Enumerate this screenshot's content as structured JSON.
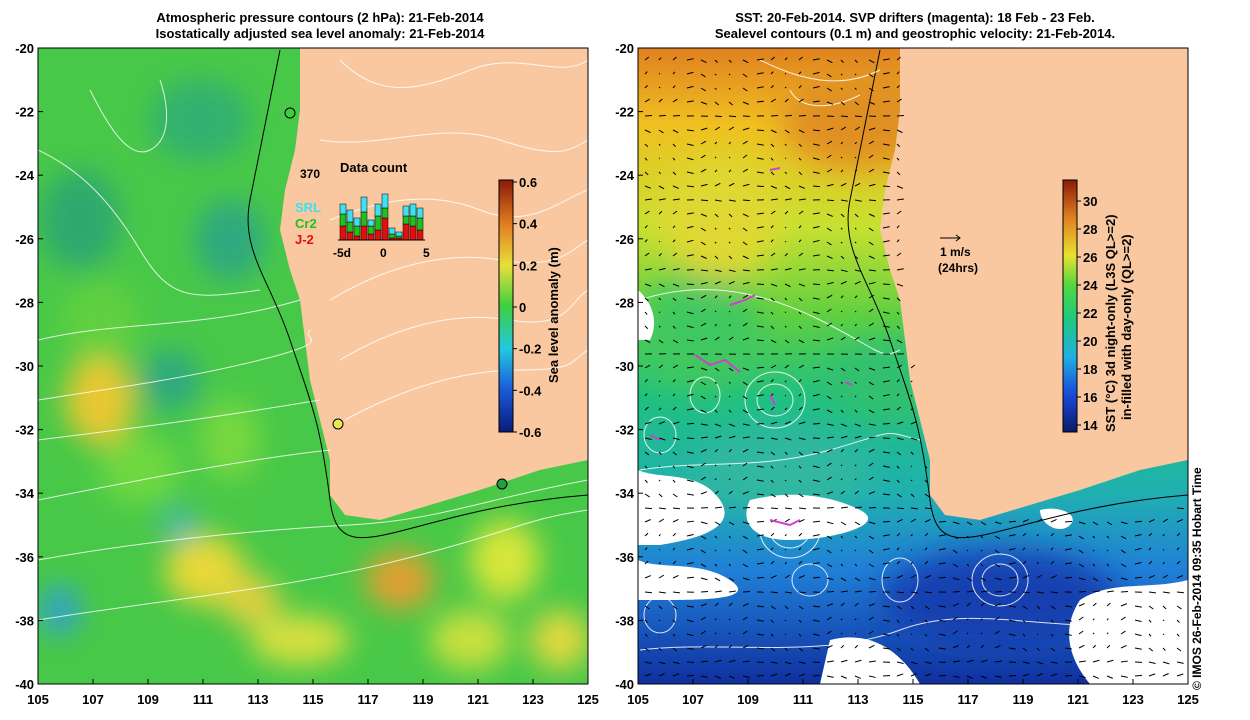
{
  "left_panel": {
    "title_line1": "Atmospheric pressure contours (2 hPa): 21-Feb-2014",
    "title_line2": "Isostatically adjusted sea level anomaly: 21-Feb-2014",
    "y_ticks": [
      "-20",
      "-22",
      "-24",
      "-26",
      "-28",
      "-30",
      "-32",
      "-34",
      "-36",
      "-38",
      "-40"
    ],
    "x_ticks": [
      "105",
      "107",
      "109",
      "111",
      "113",
      "115",
      "117",
      "119",
      "121",
      "123",
      "125"
    ],
    "colorbar": {
      "label": "Sea level anomaly (m)",
      "ticks": [
        "0.6",
        "0.4",
        "0.2",
        "0",
        "-0.2",
        "-0.4",
        "-0.6"
      ]
    },
    "inset": {
      "title": "Data count",
      "max_label": "370",
      "x_ticks": [
        "-5d",
        "0",
        "5"
      ],
      "legend": [
        {
          "name": "SRL",
          "color": "#40e0f0"
        },
        {
          "name": "Cr2",
          "color": "#20c020"
        },
        {
          "name": "J-2",
          "color": "#e01010"
        }
      ]
    }
  },
  "right_panel": {
    "title_line1": "SST: 20-Feb-2014. SVP drifters (magenta): 18 Feb - 23 Feb.",
    "title_line2": "Sealevel contours (0.1 m) and geostrophic velocity: 21-Feb-2014.",
    "y_ticks": [
      "-20",
      "-22",
      "-24",
      "-26",
      "-28",
      "-30",
      "-32",
      "-34",
      "-36",
      "-38",
      "-40"
    ],
    "x_ticks": [
      "105",
      "107",
      "109",
      "111",
      "113",
      "115",
      "117",
      "119",
      "121",
      "123",
      "125"
    ],
    "scale_arrow_label1": "1 m/s",
    "scale_arrow_label2": "(24hrs)",
    "colorbar": {
      "label_line1": "SST (°C) 3d night-only (L3S QL>=2)",
      "label_line2": "in-filled with day-only (QL>=2)",
      "ticks": [
        "30",
        "28",
        "26",
        "24",
        "22",
        "20",
        "18",
        "16",
        "14"
      ]
    }
  },
  "credit": "© IMOS 26-Feb-2014 09:35 Hobart Time",
  "colors": {
    "land": "#f9c8a0",
    "sla_green": "#3ecf3e",
    "sla_yellow": "#d8e63a"
  }
}
